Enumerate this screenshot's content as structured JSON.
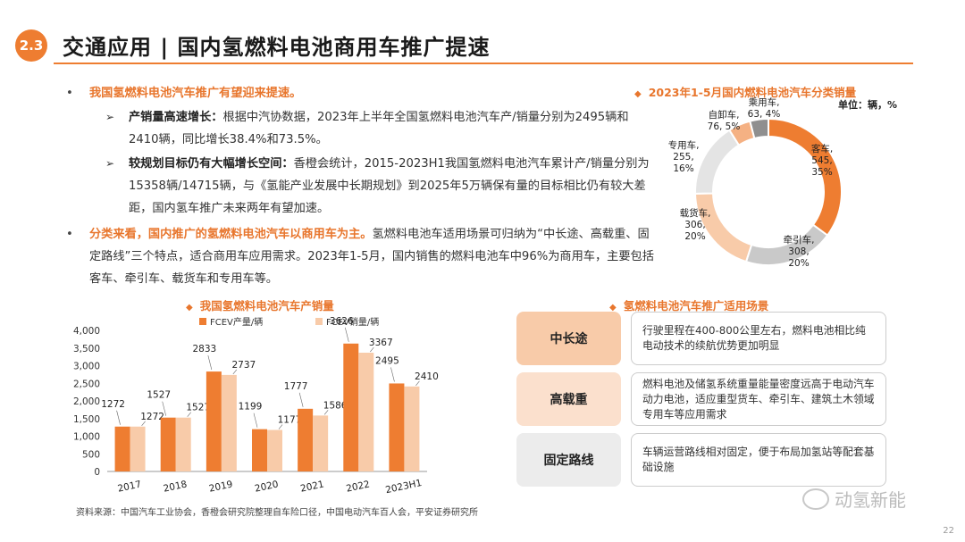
{
  "header": {
    "section": "2.3",
    "title": "交通应用 | 国内氢燃料电池商用车推广提速"
  },
  "intro": {
    "b1_lead": "我国氢燃料电池汽车推广有望迎来提速。",
    "s1_bold": "产销量高速增长：",
    "s1_text": "根据中汽协数据，2023年上半年全国氢燃料电池汽车产/销量分别为2495辆和2410辆，同比增长38.4%和73.5%。",
    "s2_bold": "较规划目标仍有大幅增长空间：",
    "s2_text": "香橙会统计，2015-2023H1我国氢燃料电池汽车累计产/销量分别为15358辆/14715辆，与《氢能产业发展中长期规划》到2025年5万辆保有量的目标相比仍有较大差距，国内氢车推广未来两年有望加速。",
    "b2_lead": "分类来看，国内推广的氢燃料电池汽车以商用车为主。",
    "b2_text": "氢燃料电池车适用场景可归纳为“中长途、高载重、固定路线”三个特点，适合商用车应用需求。2023年1-5月，国内销售的燃料电池车中96%为商用车，主要包括客车、牵引车、载货车和专用车等。"
  },
  "bar_heading": "我国氢燃料电池汽车产销量",
  "pie_heading": "2023年1-5月国内燃料电池汽车分类销量",
  "pie_unit": "单位：辆，%",
  "scene_heading": "氢燃料电池汽车推广适用场景",
  "scenes": [
    {
      "key": "中长途",
      "desc": "行驶里程在400-800公里左右，燃料电池相比纯电动技术的续航优势更加明显"
    },
    {
      "key": "高载重",
      "desc": "燃料电池及储氢系统重量能量密度远高于电动汽车动力电池，适应重型货车、牵引车、建筑土木领域专用车等应用需求"
    },
    {
      "key": "固定路线",
      "desc": "车辆运营路线相对固定，便于布局加氢站等配套基础设施"
    }
  ],
  "source": "资料来源：中国汽车工业协会，香橙会研究院整理自车险口径，中国电动汽车百人会，平安证券研究所",
  "watermark": "动氢新能",
  "page_number": "22",
  "colors": {
    "accent": "#ee7d31",
    "light": "#f8cba9",
    "gray": "#c9c9c9",
    "lightgray": "#e4e4e4",
    "darkgray": "#8f8f8f"
  },
  "chart_data": [
    {
      "type": "bar",
      "title": "我国氢燃料电池汽车产销量",
      "categories": [
        "2017",
        "2018",
        "2019",
        "2020",
        "2021",
        "2022",
        "2023H1"
      ],
      "series": [
        {
          "name": "FCEV产量/辆",
          "values": [
            1272,
            1527,
            2833,
            1199,
            1777,
            3626,
            2495
          ],
          "color": "#ee7d31"
        },
        {
          "name": "FCEV销量/辆",
          "values": [
            1272,
            1527,
            2737,
            1177,
            1586,
            3367,
            2410
          ],
          "color": "#f8cba9"
        }
      ],
      "yticks": [
        "0",
        "500",
        "1,000",
        "1,500",
        "2,000",
        "2,500",
        "3,000",
        "3,500",
        "4,000"
      ],
      "ylim": [
        0,
        4000
      ],
      "legend": "top"
    },
    {
      "type": "pie",
      "title": "2023年1-5月国内燃料电池汽车分类销量",
      "slices": [
        {
          "name": "客车",
          "value": 545,
          "pct": 35,
          "color": "#ee7d31",
          "label": [
            "客车,",
            "545,",
            "35%"
          ]
        },
        {
          "name": "牵引车",
          "value": 308,
          "pct": 20,
          "color": "#c9c9c9",
          "label": [
            "牵引车,",
            "308,",
            "20%"
          ]
        },
        {
          "name": "载货车",
          "value": 306,
          "pct": 20,
          "color": "#f8cba9",
          "label": [
            "载货车,",
            "306,",
            "20%"
          ]
        },
        {
          "name": "专用车",
          "value": 255,
          "pct": 16,
          "color": "#e4e4e4",
          "label": [
            "专用车,",
            "255,",
            "16%"
          ]
        },
        {
          "name": "自卸车",
          "value": 76,
          "pct": 5,
          "color": "#f5b183",
          "label": [
            "自卸车,",
            "76, 5%"
          ]
        },
        {
          "name": "乘用车",
          "value": 63,
          "pct": 4,
          "color": "#8f8f8f",
          "label": [
            "乘用车,",
            "63, 4%"
          ]
        }
      ]
    }
  ]
}
